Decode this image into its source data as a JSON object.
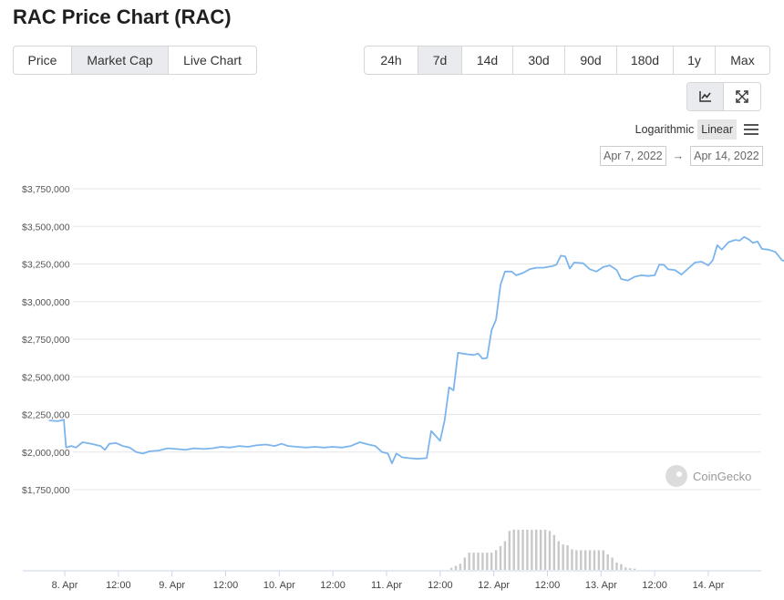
{
  "page": {
    "title": "RAC Price Chart (RAC)"
  },
  "tabs": [
    {
      "label": "Price",
      "active": false
    },
    {
      "label": "Market Cap",
      "active": true
    },
    {
      "label": "Live Chart",
      "active": false
    }
  ],
  "ranges": [
    {
      "label": "24h",
      "active": false
    },
    {
      "label": "7d",
      "active": true
    },
    {
      "label": "14d",
      "active": false
    },
    {
      "label": "30d",
      "active": false
    },
    {
      "label": "90d",
      "active": false
    },
    {
      "label": "180d",
      "active": false
    },
    {
      "label": "1y",
      "active": false
    },
    {
      "label": "Max",
      "active": false
    }
  ],
  "view_buttons": [
    {
      "icon": "line-chart-icon",
      "active": true
    },
    {
      "icon": "expand-icon",
      "active": false
    }
  ],
  "scale": {
    "log_label": "Logarithmic",
    "linear_label": "Linear",
    "selected": "Linear"
  },
  "date_range": {
    "from": "Apr 7, 2022",
    "arrow": "→",
    "to": "Apr 14, 2022"
  },
  "watermark": {
    "text": "CoinGecko"
  },
  "colors": {
    "line": "#7cb5ec",
    "volume": "#c8c8c8",
    "grid": "#e6e6e6",
    "active_bg": "#e9ebee"
  },
  "chart_data": {
    "type": "line",
    "title": "",
    "xlabel": "",
    "ylabel": "",
    "ylim": [
      1750000,
      3750000
    ],
    "y_ticks": [
      1750000,
      2000000,
      2250000,
      2500000,
      2750000,
      3000000,
      3250000,
      3500000,
      3750000
    ],
    "y_tick_labels": [
      "$1,750,000",
      "$2,000,000",
      "$2,250,000",
      "$2,500,000",
      "$2,750,000",
      "$3,000,000",
      "$3,250,000",
      "$3,500,000",
      "$3,750,000"
    ],
    "x_tick_labels": [
      "8. Apr",
      "12:00",
      "9. Apr",
      "12:00",
      "10. Apr",
      "12:00",
      "11. Apr",
      "12:00",
      "12. Apr",
      "12:00",
      "13. Apr",
      "12:00",
      "14. Apr"
    ],
    "x_ticks_hours": [
      0,
      12,
      24,
      36,
      48,
      60,
      72,
      84,
      96,
      108,
      120,
      132,
      144
    ],
    "x_range_hours": [
      -3.5,
      157.7
    ],
    "series": [
      {
        "values": [
          [
            -3.5,
            2210000
          ],
          [
            -1.5,
            2205000
          ],
          [
            -0.2,
            2215000
          ],
          [
            0.3,
            2030000
          ],
          [
            1.5,
            2040000
          ],
          [
            2.5,
            2030000
          ],
          [
            4,
            2065000
          ],
          [
            6,
            2055000
          ],
          [
            8,
            2040000
          ],
          [
            9,
            2015000
          ],
          [
            10,
            2055000
          ],
          [
            11.5,
            2060000
          ],
          [
            13,
            2040000
          ],
          [
            14.5,
            2030000
          ],
          [
            16,
            2000000
          ],
          [
            17.5,
            1990000
          ],
          [
            19,
            2005000
          ],
          [
            21,
            2010000
          ],
          [
            23,
            2025000
          ],
          [
            25,
            2020000
          ],
          [
            27,
            2015000
          ],
          [
            29,
            2025000
          ],
          [
            31,
            2020000
          ],
          [
            33,
            2025000
          ],
          [
            35,
            2035000
          ],
          [
            37,
            2030000
          ],
          [
            39,
            2040000
          ],
          [
            41,
            2035000
          ],
          [
            43,
            2045000
          ],
          [
            45,
            2050000
          ],
          [
            47,
            2040000
          ],
          [
            48.5,
            2055000
          ],
          [
            50,
            2040000
          ],
          [
            52,
            2035000
          ],
          [
            54,
            2030000
          ],
          [
            56,
            2035000
          ],
          [
            58,
            2030000
          ],
          [
            60,
            2035000
          ],
          [
            62,
            2030000
          ],
          [
            64,
            2040000
          ],
          [
            66,
            2065000
          ],
          [
            68,
            2050000
          ],
          [
            69.5,
            2040000
          ],
          [
            71,
            2000000
          ],
          [
            72.3,
            1990000
          ],
          [
            73.2,
            1925000
          ],
          [
            74.2,
            1990000
          ],
          [
            75.5,
            1965000
          ],
          [
            77,
            1960000
          ],
          [
            79,
            1955000
          ],
          [
            81,
            1960000
          ],
          [
            82,
            2140000
          ],
          [
            84,
            2075000
          ],
          [
            85,
            2210000
          ],
          [
            86,
            2430000
          ],
          [
            87,
            2410000
          ],
          [
            88,
            2660000
          ],
          [
            90,
            2650000
          ],
          [
            91.5,
            2645000
          ],
          [
            92.5,
            2655000
          ],
          [
            93.5,
            2620000
          ],
          [
            94.5,
            2625000
          ],
          [
            95.5,
            2810000
          ],
          [
            96.5,
            2880000
          ],
          [
            97.5,
            3110000
          ],
          [
            98.5,
            3200000
          ],
          [
            100,
            3200000
          ],
          [
            101,
            3175000
          ],
          [
            102.5,
            3190000
          ],
          [
            104,
            3215000
          ],
          [
            105.5,
            3225000
          ],
          [
            107,
            3225000
          ],
          [
            109,
            3235000
          ],
          [
            110,
            3245000
          ],
          [
            111,
            3305000
          ],
          [
            112,
            3300000
          ],
          [
            113,
            3220000
          ],
          [
            114,
            3260000
          ],
          [
            116,
            3255000
          ],
          [
            117.5,
            3215000
          ],
          [
            119,
            3200000
          ],
          [
            120.5,
            3230000
          ],
          [
            122,
            3240000
          ],
          [
            123.5,
            3210000
          ],
          [
            124.5,
            3150000
          ],
          [
            126,
            3140000
          ],
          [
            127.5,
            3165000
          ],
          [
            129,
            3175000
          ],
          [
            130.5,
            3170000
          ],
          [
            132,
            3175000
          ],
          [
            133,
            3245000
          ],
          [
            134,
            3245000
          ],
          [
            135,
            3215000
          ],
          [
            136.5,
            3210000
          ],
          [
            138,
            3180000
          ],
          [
            139.5,
            3220000
          ],
          [
            141,
            3260000
          ],
          [
            142.5,
            3265000
          ],
          [
            144,
            3240000
          ],
          [
            145,
            3275000
          ],
          [
            146,
            3375000
          ],
          [
            147,
            3345000
          ],
          [
            148.5,
            3395000
          ],
          [
            150,
            3410000
          ],
          [
            151,
            3405000
          ],
          [
            152,
            3430000
          ],
          [
            153,
            3415000
          ],
          [
            154,
            3390000
          ],
          [
            155,
            3400000
          ],
          [
            156,
            3350000
          ],
          [
            157.5,
            3345000
          ],
          [
            159,
            3330000
          ],
          [
            160.5,
            3275000
          ],
          [
            162,
            3260000
          ],
          [
            163.5,
            3260000
          ],
          [
            165,
            3235000
          ],
          [
            166.5,
            3215000
          ],
          [
            167.7,
            3210000
          ]
        ]
      }
    ],
    "volume": {
      "ymax": 1,
      "values": [
        [
          86.5,
          0.05
        ],
        [
          87.5,
          0.1
        ],
        [
          88.5,
          0.15
        ],
        [
          89.5,
          0.3
        ],
        [
          90.5,
          0.42
        ],
        [
          91.5,
          0.42
        ],
        [
          92.5,
          0.42
        ],
        [
          93.5,
          0.42
        ],
        [
          94.5,
          0.42
        ],
        [
          95.5,
          0.42
        ],
        [
          96.5,
          0.48
        ],
        [
          97.5,
          0.58
        ],
        [
          98.5,
          0.7
        ],
        [
          99.5,
          0.95
        ],
        [
          100.5,
          0.98
        ],
        [
          101.5,
          0.98
        ],
        [
          102.5,
          0.98
        ],
        [
          103.5,
          0.98
        ],
        [
          104.5,
          0.98
        ],
        [
          105.5,
          0.98
        ],
        [
          106.5,
          0.98
        ],
        [
          107.5,
          0.98
        ],
        [
          108.5,
          0.95
        ],
        [
          109.5,
          0.85
        ],
        [
          110.5,
          0.7
        ],
        [
          111.5,
          0.62
        ],
        [
          112.5,
          0.6
        ],
        [
          113.5,
          0.5
        ],
        [
          114.5,
          0.48
        ],
        [
          115.5,
          0.48
        ],
        [
          116.5,
          0.48
        ],
        [
          117.5,
          0.48
        ],
        [
          118.5,
          0.48
        ],
        [
          119.5,
          0.48
        ],
        [
          120.5,
          0.48
        ],
        [
          121.5,
          0.38
        ],
        [
          122.5,
          0.3
        ],
        [
          123.5,
          0.18
        ],
        [
          124.5,
          0.14
        ],
        [
          125.5,
          0.06
        ],
        [
          126.5,
          0.04
        ],
        [
          127.5,
          0.03
        ]
      ]
    }
  }
}
